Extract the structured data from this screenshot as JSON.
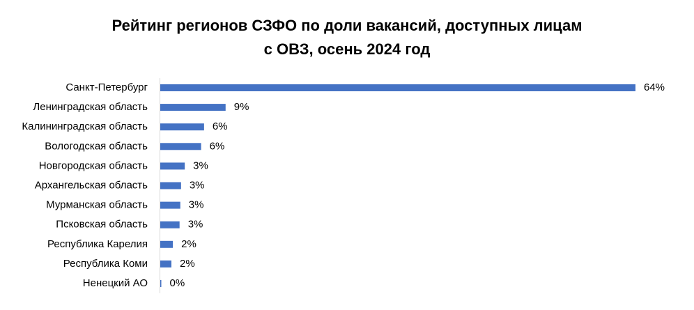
{
  "chart_data": {
    "type": "hbar",
    "title": [
      "Рейтинг регионов СЗФО по доли вакансий, доступных лицам",
      "с ОВЗ, осень 2024 год"
    ],
    "categories": [
      "Санкт-Петербург",
      "Ленинградская область",
      "Калининградская область",
      "Вологодская область",
      "Новгородская область",
      "Архангельская область",
      "Мурманская область",
      "Псковская область",
      "Республика Карелия",
      "Республика Коми",
      "Ненецкий АО"
    ],
    "values": [
      64,
      8.8,
      5.9,
      5.5,
      3.3,
      2.8,
      2.7,
      2.6,
      1.7,
      1.5,
      0.1
    ],
    "value_labels": [
      "64%",
      "9%",
      "6%",
      "6%",
      "3%",
      "3%",
      "3%",
      "3%",
      "2%",
      "2%",
      "0%"
    ],
    "color": "#4472c4"
  }
}
